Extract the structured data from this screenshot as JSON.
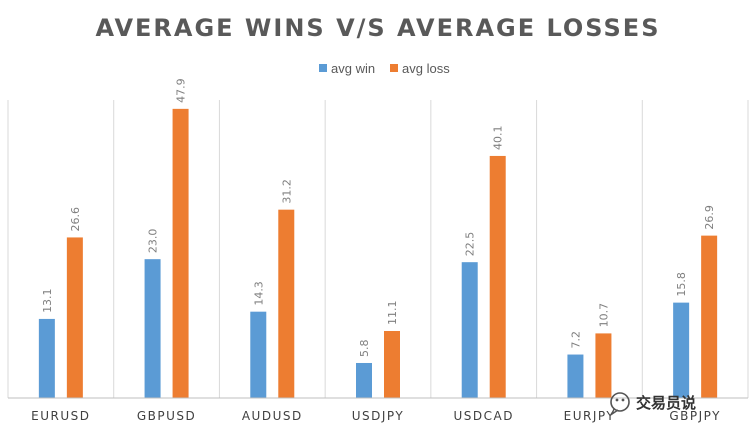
{
  "chart_data": {
    "type": "bar",
    "title": "AVERAGE WINS V/S AVERAGE LOSSES",
    "categories": [
      "EURUSD",
      "GBPUSD",
      "AUDUSD",
      "USDJPY",
      "USDCAD",
      "EURJPY",
      "GBPJPY"
    ],
    "series": [
      {
        "name": "avg win",
        "color": "#5b9bd5",
        "values": [
          13.1,
          23.0,
          14.3,
          5.8,
          22.5,
          7.2,
          15.8
        ]
      },
      {
        "name": "avg loss",
        "color": "#ed7d31",
        "values": [
          26.6,
          47.9,
          31.2,
          11.1,
          40.1,
          10.7,
          26.9
        ]
      }
    ],
    "xlabel": "",
    "ylabel": "",
    "ylim": [
      0,
      55
    ],
    "legend_position": "top-center",
    "grid": "vertical-category-separators"
  },
  "watermark": {
    "text": "交易员说",
    "icon": "wechat-icon"
  },
  "colors": {
    "grid": "#d9d9d9",
    "axis": "#bfbfbf",
    "title": "#595959"
  }
}
